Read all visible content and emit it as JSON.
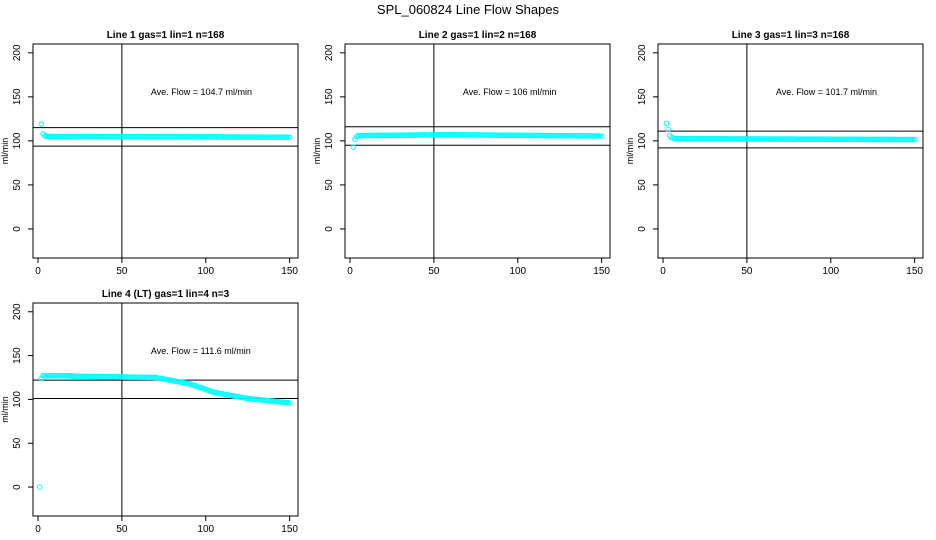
{
  "figure": {
    "title": "SPL_060824  Line Flow Shapes"
  },
  "colors": {
    "points": "#00ffff",
    "lines": "#000000"
  },
  "chart_data": [
    {
      "type": "scatter",
      "title": "Line 1 gas=1 lin=1 n=168",
      "xlabel": "",
      "ylabel": "ml/min",
      "xlim": [
        -3,
        155
      ],
      "ylim": [
        -33,
        210
      ],
      "xticks": [
        0,
        50,
        100,
        150
      ],
      "yticks": [
        0,
        50,
        100,
        150,
        200
      ],
      "annotation": "Ave. Flow =  104.7  ml/min",
      "vline_x": 50,
      "hlines_y": [
        115,
        94
      ],
      "points": [
        [
          2,
          119
        ],
        [
          3,
          108
        ],
        [
          4,
          106
        ],
        [
          5,
          105.5
        ]
      ],
      "segments": [
        {
          "x_start": 5,
          "x_end": 150,
          "y_start": 105,
          "y_end": 104.2
        }
      ]
    },
    {
      "type": "scatter",
      "title": "Line 2 gas=1 lin=2 n=168",
      "xlabel": "",
      "ylabel": "ml/min",
      "xlim": [
        -3,
        155
      ],
      "ylim": [
        -33,
        210
      ],
      "xticks": [
        0,
        50,
        100,
        150
      ],
      "yticks": [
        0,
        50,
        100,
        150,
        200
      ],
      "annotation": "Ave. Flow =  106  ml/min",
      "vline_x": 50,
      "hlines_y": [
        116,
        95
      ],
      "points": [
        [
          2,
          93
        ],
        [
          3,
          102
        ],
        [
          4,
          105
        ]
      ],
      "segments": [
        {
          "x_start": 5,
          "x_end": 60,
          "y_start": 106,
          "y_end": 107
        },
        {
          "x_start": 60,
          "x_end": 150,
          "y_start": 107,
          "y_end": 105.5
        }
      ]
    },
    {
      "type": "scatter",
      "title": "Line 3 gas=1 lin=3 n=168",
      "xlabel": "",
      "ylabel": "ml/min",
      "xlim": [
        -3,
        155
      ],
      "ylim": [
        -33,
        210
      ],
      "xticks": [
        0,
        50,
        100,
        150
      ],
      "yticks": [
        0,
        50,
        100,
        150,
        200
      ],
      "annotation": "Ave. Flow =  101.7  ml/min",
      "vline_x": 50,
      "hlines_y": [
        111,
        92
      ],
      "points": [
        [
          2,
          120
        ],
        [
          3,
          113
        ],
        [
          4,
          106
        ],
        [
          5,
          104
        ],
        [
          6,
          103
        ]
      ],
      "segments": [
        {
          "x_start": 7,
          "x_end": 150,
          "y_start": 102.5,
          "y_end": 101.5
        }
      ]
    },
    {
      "type": "scatter",
      "title": "Line 4 (LT) gas=1 lin=4 n=3",
      "xlabel": "",
      "ylabel": "ml/min",
      "xlim": [
        -3,
        155
      ],
      "ylim": [
        -33,
        210
      ],
      "xticks": [
        0,
        50,
        100,
        150
      ],
      "yticks": [
        0,
        50,
        100,
        150,
        200
      ],
      "annotation": "Ave. Flow =  111.6  ml/min",
      "vline_x": 50,
      "hlines_y": [
        122,
        101
      ],
      "points": [
        [
          1,
          0
        ],
        [
          2,
          124
        ]
      ],
      "segments": [
        {
          "x_start": 3,
          "x_end": 20,
          "y_start": 127,
          "y_end": 127
        },
        {
          "x_start": 20,
          "x_end": 70,
          "y_start": 126.5,
          "y_end": 125
        },
        {
          "x_start": 70,
          "x_end": 90,
          "y_start": 125,
          "y_end": 118
        },
        {
          "x_start": 90,
          "x_end": 105,
          "y_start": 118,
          "y_end": 108
        },
        {
          "x_start": 105,
          "x_end": 125,
          "y_start": 108,
          "y_end": 101
        },
        {
          "x_start": 125,
          "x_end": 150,
          "y_start": 101,
          "y_end": 96
        }
      ]
    }
  ]
}
